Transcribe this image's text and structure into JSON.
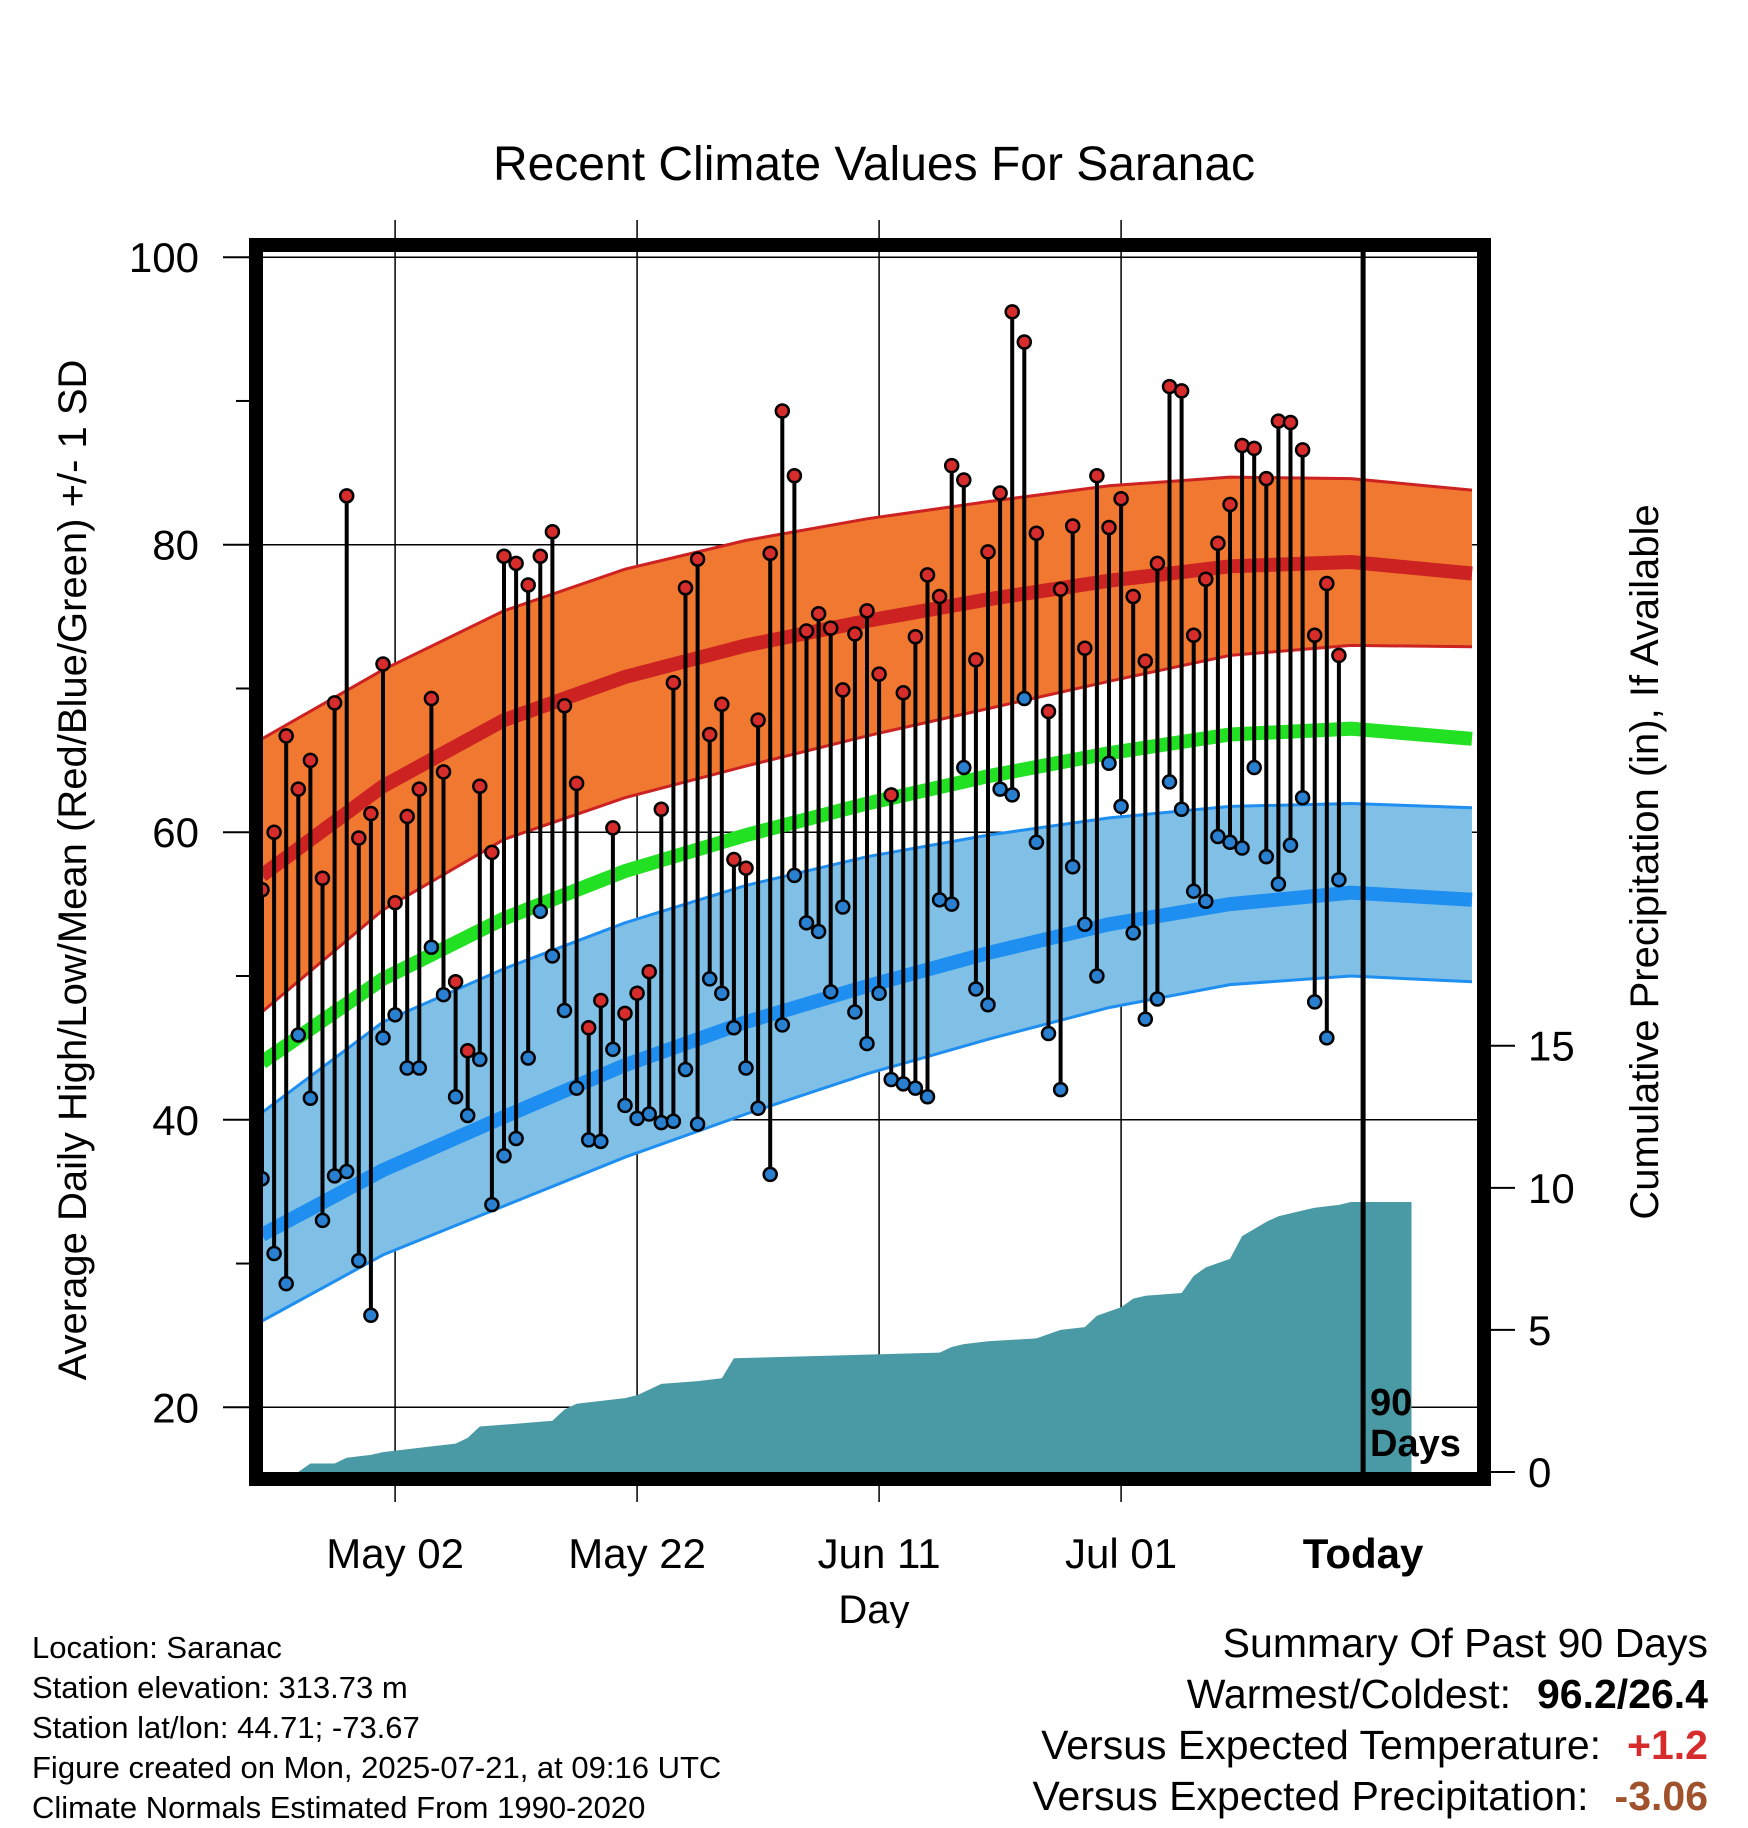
{
  "chart_data": {
    "type": "line",
    "title": "Recent Climate Values For Saranac",
    "xlabel": "Day",
    "ylabel": "Average Daily High/Low/Mean (Red/Blue/Green) +/- 1 SD",
    "y2label": "Cumulative Precipitation (in), If Available",
    "ylim": [
      15.5,
      100.5
    ],
    "y2lim": [
      0,
      43
    ],
    "yticks": [
      20,
      40,
      60,
      80,
      100
    ],
    "y2ticks": [
      0,
      5,
      10,
      15
    ],
    "x_tick_labels": [
      "May 02",
      "May 22",
      "Jun 11",
      "Jul 01",
      "Today"
    ],
    "x_tick_days": [
      11,
      31,
      51,
      71,
      91
    ],
    "days_label": "90 Days",
    "grid": true,
    "colors": {
      "high_band": "#f07830",
      "high_line": "#cc2222",
      "low_band": "#80c0e6",
      "low_line": "#1e8ff0",
      "mean_line": "#22e022",
      "precip": "#4a9aa5",
      "high_dot": "#d62c2c",
      "low_dot": "#2a80d0"
    },
    "normal_high": {
      "day": [
        0,
        10,
        20,
        30,
        40,
        50,
        60,
        70,
        80,
        90,
        100
      ],
      "mean": [
        57.0,
        63.2,
        67.8,
        70.8,
        73.0,
        74.7,
        76.2,
        77.5,
        78.5,
        78.8,
        78.0
      ],
      "upper": [
        66.5,
        71.3,
        75.4,
        78.3,
        80.3,
        81.8,
        83.0,
        84.1,
        84.7,
        84.6,
        83.8
      ],
      "lower": [
        47.5,
        54.6,
        59.5,
        62.4,
        64.6,
        66.7,
        68.6,
        70.5,
        72.3,
        73.0,
        72.9
      ]
    },
    "normal_mean": {
      "day": [
        0,
        10,
        20,
        30,
        40,
        50,
        60,
        70,
        80,
        90,
        100
      ],
      "values": [
        44.0,
        49.8,
        54.0,
        57.3,
        59.8,
        62.0,
        63.9,
        65.5,
        66.8,
        67.2,
        66.5
      ]
    },
    "normal_low": {
      "day": [
        0,
        10,
        20,
        30,
        40,
        50,
        60,
        70,
        80,
        90,
        100
      ],
      "mean": [
        32.0,
        36.5,
        40.2,
        43.8,
        46.8,
        49.3,
        51.6,
        53.6,
        55.0,
        55.8,
        55.3
      ],
      "upper": [
        40.5,
        46.8,
        50.5,
        53.7,
        56.3,
        58.3,
        59.8,
        61.0,
        61.8,
        62.0,
        61.7
      ],
      "lower": [
        26.0,
        30.6,
        34.0,
        37.4,
        40.4,
        43.2,
        45.6,
        47.8,
        49.4,
        50.0,
        49.6
      ]
    },
    "daily_high": [
      56.0,
      60.0,
      66.7,
      63.0,
      65.0,
      56.8,
      69.0,
      83.4,
      59.6,
      61.3,
      71.7,
      55.1,
      61.1,
      63.0,
      69.3,
      64.2,
      49.6,
      44.8,
      63.2,
      58.6,
      79.2,
      78.7,
      77.2,
      79.2,
      80.9,
      68.8,
      63.4,
      46.4,
      48.3,
      60.3,
      47.4,
      48.8,
      50.3,
      61.6,
      70.4,
      77.0,
      79.0,
      66.8,
      68.9,
      58.1,
      57.5,
      67.8,
      79.4,
      89.3,
      84.8,
      74.0,
      75.2,
      74.2,
      69.9,
      73.8,
      75.4,
      71.0,
      62.6,
      69.7,
      73.6,
      77.9,
      76.4,
      85.5,
      84.5,
      72.0,
      79.5,
      83.6,
      96.2,
      94.1,
      80.8,
      68.4,
      76.9,
      81.3,
      72.8,
      84.8,
      81.2,
      83.2,
      76.4,
      71.9,
      78.7,
      91.0,
      90.7,
      73.7,
      77.6,
      80.1,
      82.8,
      86.9,
      86.7,
      84.6,
      88.6,
      88.5,
      86.6,
      73.7,
      77.3,
      72.3
    ],
    "daily_low": [
      35.9,
      30.7,
      28.6,
      45.9,
      41.5,
      33.0,
      36.1,
      36.4,
      30.2,
      26.4,
      45.7,
      47.3,
      43.6,
      43.6,
      52.0,
      48.7,
      41.6,
      40.3,
      44.2,
      34.1,
      37.5,
      38.7,
      44.3,
      54.5,
      51.4,
      47.6,
      42.2,
      38.6,
      38.5,
      44.9,
      41.0,
      40.1,
      40.4,
      39.8,
      39.9,
      43.5,
      39.7,
      49.8,
      48.8,
      46.4,
      43.6,
      40.8,
      36.2,
      46.6,
      57.0,
      53.7,
      53.1,
      48.9,
      54.8,
      47.5,
      45.3,
      48.8,
      42.8,
      42.5,
      42.2,
      41.6,
      55.3,
      55.0,
      64.5,
      49.1,
      48.0,
      63.0,
      62.6,
      69.3,
      59.3,
      46.0,
      42.1,
      57.6,
      53.6,
      50.0,
      64.8,
      61.8,
      53.0,
      47.0,
      48.4,
      63.5,
      61.6,
      55.9,
      55.2,
      59.7,
      59.3,
      58.9,
      64.5,
      58.3,
      56.4,
      59.1,
      62.4,
      48.2,
      45.7,
      56.7
    ],
    "cumulative_precip": {
      "day": [
        0,
        3,
        4,
        6,
        7,
        9,
        10,
        12,
        14,
        16,
        17,
        18,
        21,
        24,
        25,
        26,
        30,
        31,
        32,
        33,
        36,
        38,
        39,
        56,
        57,
        58,
        60,
        64,
        66,
        68,
        69,
        71,
        72,
        73,
        76,
        77,
        78,
        80,
        81,
        83,
        84,
        85,
        86,
        87,
        89,
        90,
        95
      ],
      "values": [
        0,
        0,
        0.3,
        0.3,
        0.5,
        0.6,
        0.7,
        0.8,
        0.9,
        1.0,
        1.2,
        1.6,
        1.7,
        1.8,
        2.2,
        2.4,
        2.6,
        2.7,
        2.9,
        3.1,
        3.2,
        3.3,
        4.0,
        4.2,
        4.4,
        4.5,
        4.6,
        4.7,
        5.0,
        5.1,
        5.5,
        5.8,
        6.1,
        6.2,
        6.3,
        6.9,
        7.2,
        7.5,
        8.3,
        8.8,
        9.0,
        9.1,
        9.2,
        9.3,
        9.4,
        9.5,
        9.5
      ]
    }
  },
  "info": {
    "location": "Location: Saranac",
    "elevation": "Station elevation: 313.73 m",
    "latlon": "Station lat/lon: 44.71; -73.67",
    "created": "Figure created on Mon, 2025-07-21, at 09:16 UTC",
    "normals": "Climate Normals Estimated From 1990-2020"
  },
  "summary": {
    "title": "Summary Of Past 90 Days",
    "warmest_label": "Warmest/Coldest:",
    "warmest_value": "96.2/26.4",
    "temp_label": "Versus Expected Temperature:",
    "temp_value": "+1.2",
    "temp_color": "#d62c2c",
    "precip_label": "Versus Expected Precipitation:",
    "precip_value": "-3.06",
    "precip_color": "#a0522d"
  }
}
